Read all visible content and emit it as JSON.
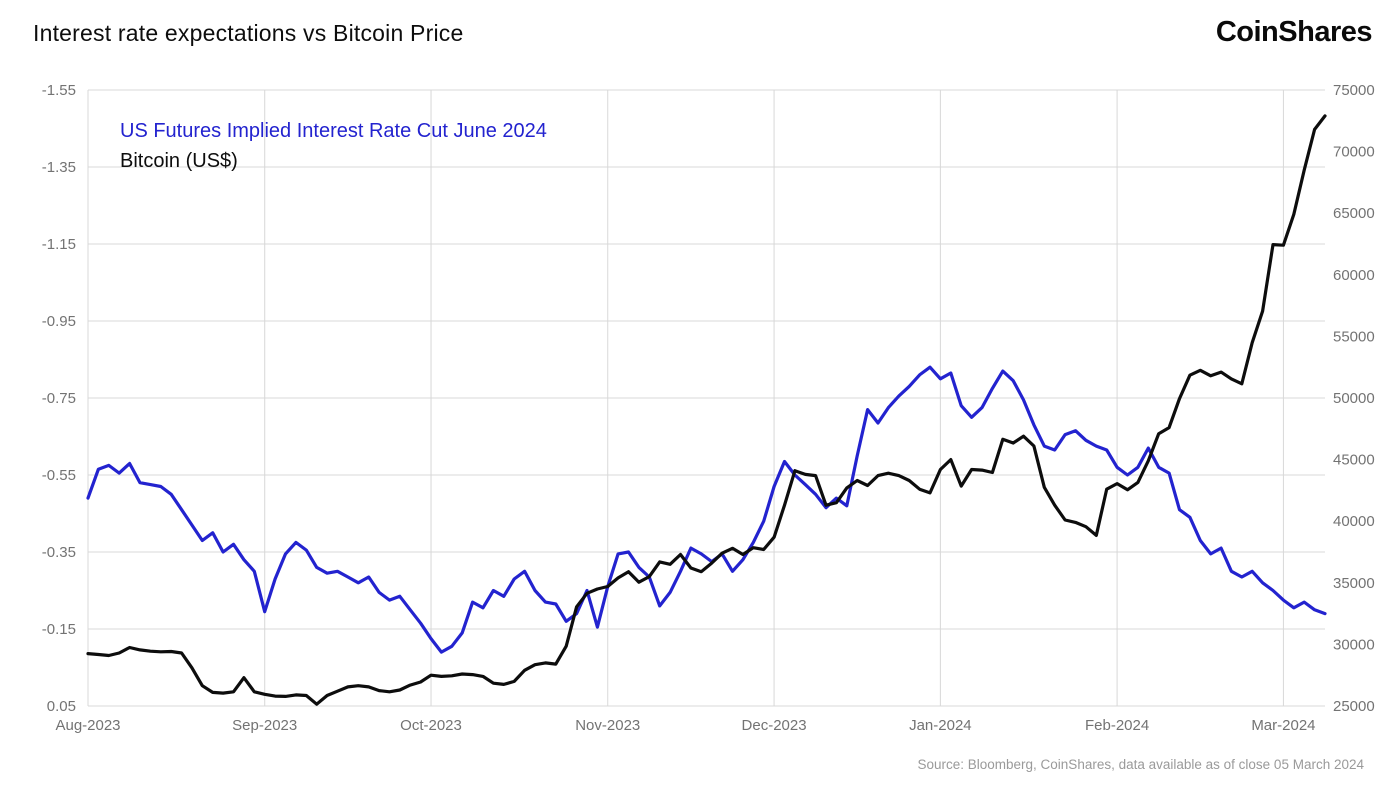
{
  "header": {
    "title": "Interest rate expectations vs Bitcoin Price",
    "logo_text": "CoinShares"
  },
  "chart_data": {
    "type": "line",
    "title": "Interest rate expectations vs Bitcoin Price",
    "source": "Source: Bloomberg, CoinShares, data available as of close 05 March 2024",
    "grid": true,
    "legend_position": "top-left-inside",
    "x_tick_labels": [
      "Aug-2023",
      "Sep-2023",
      "Oct-2023",
      "Nov-2023",
      "Dec-2023",
      "Jan-2024",
      "Feb-2024",
      "Mar-2024"
    ],
    "x_tick_indices": [
      0,
      17,
      33,
      50,
      66,
      82,
      99,
      115
    ],
    "left_axis": {
      "top": -1.55,
      "bottom": 0.05,
      "inverted": true,
      "ticks": [
        -1.55,
        -1.35,
        -1.15,
        -0.95,
        -0.75,
        -0.55,
        -0.35,
        -0.15,
        0.05
      ]
    },
    "right_axis": {
      "top": 75000,
      "bottom": 25000,
      "ticks": [
        75000,
        70000,
        65000,
        60000,
        55000,
        50000,
        45000,
        40000,
        35000,
        30000,
        25000
      ]
    },
    "series": [
      {
        "name": "US Futures Implied Interest Rate Cut June 2024",
        "axis": "left",
        "color": "#2323cf",
        "values": [
          -0.49,
          -0.565,
          -0.575,
          -0.555,
          -0.58,
          -0.53,
          -0.525,
          -0.52,
          -0.5,
          -0.46,
          -0.42,
          -0.38,
          -0.4,
          -0.35,
          -0.37,
          -0.33,
          -0.3,
          -0.195,
          -0.28,
          -0.345,
          -0.375,
          -0.355,
          -0.31,
          -0.295,
          -0.3,
          -0.285,
          -0.27,
          -0.285,
          -0.245,
          -0.225,
          -0.235,
          -0.2,
          -0.165,
          -0.125,
          -0.09,
          -0.105,
          -0.14,
          -0.22,
          -0.205,
          -0.25,
          -0.235,
          -0.28,
          -0.3,
          -0.25,
          -0.22,
          -0.215,
          -0.17,
          -0.19,
          -0.25,
          -0.155,
          -0.26,
          -0.345,
          -0.35,
          -0.31,
          -0.285,
          -0.21,
          -0.245,
          -0.3,
          -0.36,
          -0.345,
          -0.325,
          -0.345,
          -0.3,
          -0.33,
          -0.375,
          -0.43,
          -0.52,
          -0.585,
          -0.55,
          -0.525,
          -0.5,
          -0.465,
          -0.49,
          -0.47,
          -0.6,
          -0.72,
          -0.685,
          -0.725,
          -0.755,
          -0.78,
          -0.81,
          -0.83,
          -0.8,
          -0.815,
          -0.73,
          -0.7,
          -0.725,
          -0.775,
          -0.82,
          -0.795,
          -0.745,
          -0.68,
          -0.625,
          -0.615,
          -0.655,
          -0.665,
          -0.64,
          -0.625,
          -0.615,
          -0.57,
          -0.55,
          -0.57,
          -0.62,
          -0.57,
          -0.555,
          -0.46,
          -0.44,
          -0.38,
          -0.345,
          -0.36,
          -0.3,
          -0.285,
          -0.3,
          -0.27,
          -0.25,
          -0.225,
          -0.205,
          -0.22,
          -0.2,
          -0.19
        ]
      },
      {
        "name": "Bitcoin (US$)",
        "axis": "right",
        "color": "#0d0d0d",
        "values": [
          29250,
          29180,
          29100,
          29300,
          29750,
          29550,
          29450,
          29400,
          29420,
          29300,
          28100,
          26650,
          26100,
          26050,
          26150,
          27300,
          26150,
          25950,
          25800,
          25780,
          25900,
          25850,
          25150,
          25850,
          26200,
          26550,
          26650,
          26550,
          26250,
          26150,
          26300,
          26700,
          26950,
          27500,
          27400,
          27450,
          27600,
          27550,
          27400,
          26850,
          26750,
          27000,
          27900,
          28350,
          28500,
          28400,
          29850,
          33050,
          34150,
          34500,
          34700,
          35400,
          35900,
          35050,
          35500,
          36700,
          36500,
          37300,
          36200,
          35900,
          36600,
          37400,
          37800,
          37300,
          37850,
          37700,
          38700,
          41300,
          44100,
          43800,
          43700,
          41300,
          41500,
          42700,
          43300,
          42900,
          43700,
          43900,
          43700,
          43300,
          42600,
          42300,
          44200,
          45000,
          42850,
          44200,
          44150,
          43950,
          46650,
          46350,
          46900,
          46100,
          42750,
          41300,
          40100,
          39900,
          39550,
          38850,
          42600,
          43050,
          42550,
          43150,
          44900,
          47100,
          47600,
          49950,
          51850,
          52250,
          51800,
          52100,
          51550,
          51150,
          54500,
          57050,
          62450,
          62400,
          64900,
          68500,
          71800,
          72900
        ]
      }
    ]
  }
}
